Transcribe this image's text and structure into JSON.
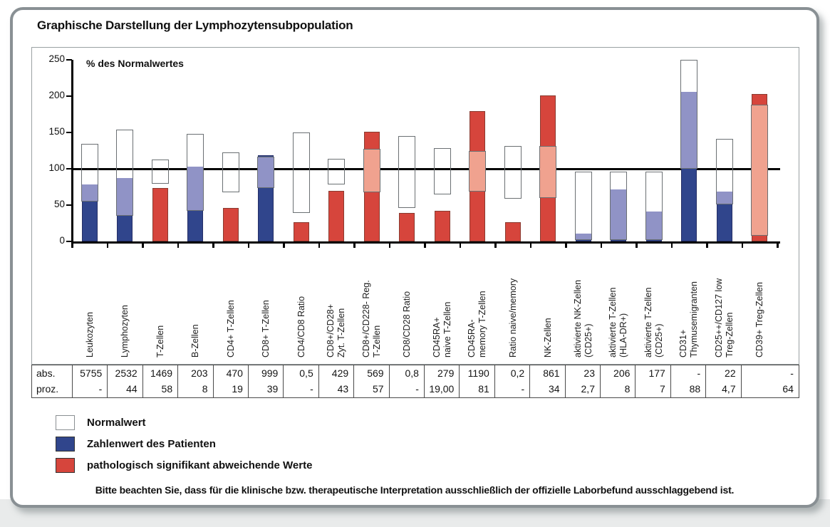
{
  "page": {
    "title": "Graphische Darstellung der Lymphozytensubpopulation",
    "footer_note": "Bitte beachten Sie, dass für die klinische bzw. therapeutische Interpretation ausschließlich der offizielle Laborbefund ausschlaggebend ist."
  },
  "table": {
    "row_labels": [
      "abs.",
      "proz."
    ]
  },
  "chart_data": {
    "type": "bar",
    "title": "Graphische Darstellung der Lymphozytensubpopulation",
    "y_axis_label": "% des Normalwertes",
    "y_ticks": [
      0,
      50,
      100,
      150,
      200,
      250
    ],
    "ylim": [
      0,
      250
    ],
    "reference_line": 100,
    "grid": false,
    "legend_position": "bottom-left",
    "colors": {
      "patient": "#30458c",
      "patient_overlap": "#9093c6",
      "pathological": "#d6453c",
      "pathological_overlap": "#f0a28f",
      "normal_box_fill": "#ffffff",
      "normal_box_border": "#6b7073",
      "axis": "#000000"
    },
    "legend": [
      {
        "label": "Normalwert",
        "color": "#ffffff"
      },
      {
        "label": "Zahlenwert des Patienten",
        "color": "#30458c"
      },
      {
        "label": "pathologisch signifikant abweichende Werte",
        "color": "#d6453c"
      }
    ],
    "series": [
      {
        "label": "Leukozyten",
        "label_lines": [
          "Leukozyten"
        ],
        "patient_pct": 78,
        "normal_low_pct": 55,
        "normal_high_pct": 134,
        "status": "normal",
        "abs": "5755",
        "proz": "-"
      },
      {
        "label": "Lymphozyten",
        "label_lines": [
          "Lymphozyten"
        ],
        "patient_pct": 87,
        "normal_low_pct": 35,
        "normal_high_pct": 154,
        "status": "normal",
        "abs": "2532",
        "proz": "44"
      },
      {
        "label": "T-Zellen",
        "label_lines": [
          "T-Zellen"
        ],
        "patient_pct": 74,
        "normal_low_pct": 79,
        "normal_high_pct": 113,
        "status": "pathological",
        "abs": "1469",
        "proz": "58"
      },
      {
        "label": "B-Zellen",
        "label_lines": [
          "B-Zellen"
        ],
        "patient_pct": 103,
        "normal_low_pct": 42,
        "normal_high_pct": 148,
        "status": "normal",
        "abs": "203",
        "proz": "8"
      },
      {
        "label": "CD4+ T-Zellen",
        "label_lines": [
          "CD4+ T-Zellen"
        ],
        "patient_pct": 46,
        "normal_low_pct": 68,
        "normal_high_pct": 123,
        "status": "pathological",
        "abs": "470",
        "proz": "19"
      },
      {
        "label": "CD8+ T-Zellen",
        "label_lines": [
          "CD8+ T-Zellen"
        ],
        "patient_pct": 119,
        "normal_low_pct": 74,
        "normal_high_pct": 117,
        "status": "normal",
        "abs": "999",
        "proz": "39"
      },
      {
        "label": "CD4/CD8 Ratio",
        "label_lines": [
          "CD4/CD8 Ratio"
        ],
        "patient_pct": 26,
        "normal_low_pct": 39,
        "normal_high_pct": 150,
        "status": "pathological",
        "abs": "0,5",
        "proz": "-"
      },
      {
        "label": "CD8+/CD28+ Zyt. T-Zellen",
        "label_lines": [
          "CD8+/CD28+",
          "Zyt. T-Zellen"
        ],
        "patient_pct": 70,
        "normal_low_pct": 78,
        "normal_high_pct": 114,
        "status": "pathological",
        "abs": "429",
        "proz": "43"
      },
      {
        "label": "CD8+/CD228- Reg. T-Zellen",
        "label_lines": [
          "CD8+/CD228- Reg.",
          "T-Zellen"
        ],
        "patient_pct": 151,
        "normal_low_pct": 68,
        "normal_high_pct": 127,
        "status": "pathological",
        "abs": "569",
        "proz": "57"
      },
      {
        "label": "CD8/CD28 Ratio",
        "label_lines": [
          "CD8/CD28 Ratio"
        ],
        "patient_pct": 39,
        "normal_low_pct": 46,
        "normal_high_pct": 145,
        "status": "pathological",
        "abs": "0,8",
        "proz": "-"
      },
      {
        "label": "CD45RA+ naive T-Zellen",
        "label_lines": [
          "CD45RA+",
          "naive T-Zellen"
        ],
        "patient_pct": 42,
        "normal_low_pct": 65,
        "normal_high_pct": 128,
        "status": "pathological",
        "abs": "279",
        "proz": "19,00"
      },
      {
        "label": "CD45RA- memory T-Zellen",
        "label_lines": [
          "CD45RA-",
          "memory T-Zellen"
        ],
        "patient_pct": 179,
        "normal_low_pct": 69,
        "normal_high_pct": 125,
        "status": "pathological",
        "abs": "1190",
        "proz": "81"
      },
      {
        "label": "Ratio naive/memory",
        "label_lines": [
          "Ratio naive/memory"
        ],
        "patient_pct": 26,
        "normal_low_pct": 59,
        "normal_high_pct": 131,
        "status": "pathological",
        "abs": "0,2",
        "proz": "-"
      },
      {
        "label": "NK-Zellen",
        "label_lines": [
          "NK-Zellen"
        ],
        "patient_pct": 201,
        "normal_low_pct": 60,
        "normal_high_pct": 131,
        "status": "pathological",
        "abs": "861",
        "proz": "34"
      },
      {
        "label": "aktivierte NK-Zellen (CD25+)",
        "label_lines": [
          "aktivierte NK-Zellen",
          "(CD25+)"
        ],
        "patient_pct": 11,
        "normal_low_pct": 2,
        "normal_high_pct": 96,
        "status": "normal",
        "abs": "23",
        "proz": "2,7"
      },
      {
        "label": "aktivierte T-Zellen (HLA-DR+)",
        "label_lines": [
          "aktivierte T-Zellen",
          "(HLA-DR+)"
        ],
        "patient_pct": 72,
        "normal_low_pct": 2,
        "normal_high_pct": 96,
        "status": "normal",
        "abs": "206",
        "proz": "8"
      },
      {
        "label": "aktivierte T-Zellen (CD25+)",
        "label_lines": [
          "aktivierte T-Zellen",
          "(CD25+)"
        ],
        "patient_pct": 41,
        "normal_low_pct": 2,
        "normal_high_pct": 96,
        "status": "normal",
        "abs": "177",
        "proz": "7"
      },
      {
        "label": "CD31+ Thymusemigranten",
        "label_lines": [
          "CD31+",
          "Thymusemigranten"
        ],
        "patient_pct": 206,
        "normal_low_pct": 100,
        "normal_high_pct": 250,
        "status": "normal",
        "abs": "-",
        "proz": "88"
      },
      {
        "label": "CD25++/CD127 low Treg-Zellen",
        "label_lines": [
          "CD25++/CD127 low",
          "Treg-Zellen"
        ],
        "patient_pct": 69,
        "normal_low_pct": 51,
        "normal_high_pct": 141,
        "status": "normal",
        "abs": "22",
        "proz": "4,7"
      },
      {
        "label": "CD39+ Treg-Zellen",
        "label_lines": [
          "CD39+ Treg-Zellen"
        ],
        "patient_pct": 203,
        "normal_low_pct": 8,
        "normal_high_pct": 188,
        "status": "pathological",
        "abs": "-",
        "proz": "64"
      }
    ]
  }
}
